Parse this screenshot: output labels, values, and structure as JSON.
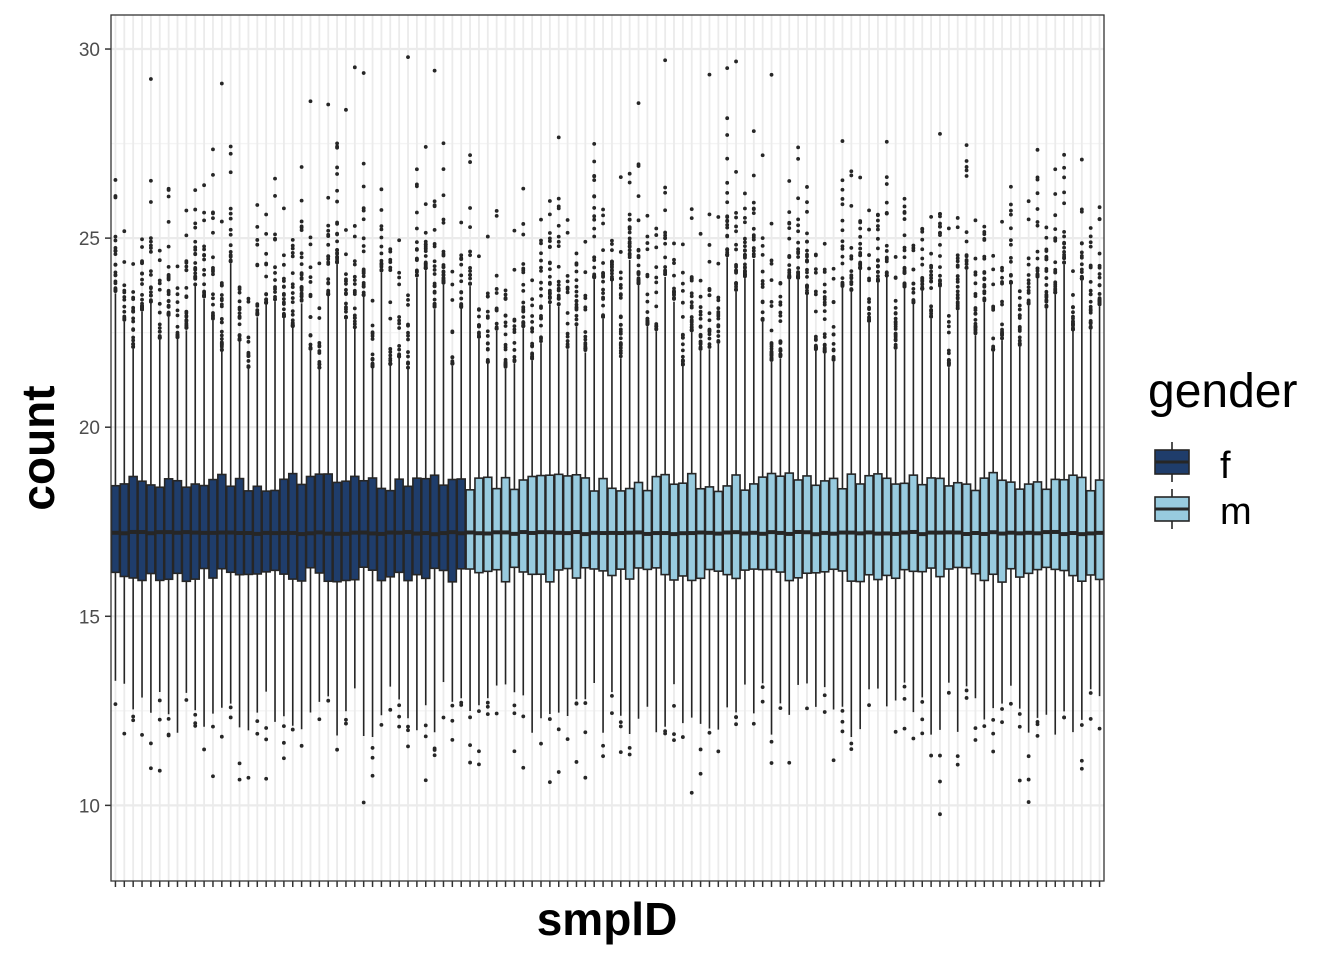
{
  "chart_data": {
    "type": "boxplot",
    "xlabel": "smplD",
    "ylabel": "count",
    "ylim": [
      8,
      30.9
    ],
    "y_ticks": [
      10,
      15,
      20,
      25,
      30
    ],
    "x_tick_labels_shown": false,
    "grid": true,
    "theme": "bw",
    "legend": {
      "title": "gender",
      "position": "right",
      "entries": [
        {
          "label": "f",
          "color": "#1f3d6b"
        },
        {
          "label": "m",
          "color": "#98cbdf"
        }
      ]
    },
    "n_samples": 112,
    "series": [
      {
        "name": "f",
        "first_sample": 1,
        "last_sample": 40
      },
      {
        "name": "m",
        "first_sample": 41,
        "last_sample": 112
      }
    ],
    "median_approx": 17.2,
    "q1_range": [
      15.9,
      16.3
    ],
    "q3_range": [
      18.3,
      18.8
    ],
    "lower_whisker_range": [
      11.8,
      13.3
    ],
    "upper_whisker_range": [
      21.5,
      24.5
    ],
    "outlier_range": [
      8.9,
      29.9
    ]
  },
  "colors": {
    "box_line": "#262626",
    "panel_border": "#333333",
    "grid_major": "#ebebeb",
    "grid_minor": "#f4f4f4"
  }
}
